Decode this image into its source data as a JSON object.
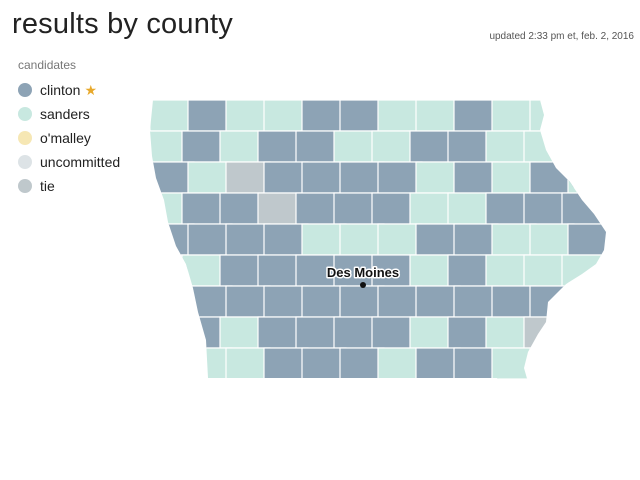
{
  "title": "results by county",
  "updated": "updated 2:33 pm et, feb. 2, 2016",
  "legend": {
    "heading": "candidates",
    "items": [
      {
        "key": "clinton",
        "label": "clinton",
        "color": "#8da3b5",
        "winner": true
      },
      {
        "key": "sanders",
        "label": "sanders",
        "color": "#c8e8e0",
        "winner": false
      },
      {
        "key": "omalley",
        "label": "o'malley",
        "color": "#f6e7b4",
        "winner": false
      },
      {
        "key": "uncommitted",
        "label": "uncommitted",
        "color": "#dde3e6",
        "winner": false
      },
      {
        "key": "tie",
        "label": "tie",
        "color": "#bfc8cc",
        "winner": false
      }
    ]
  },
  "city": {
    "name": "Des Moines"
  },
  "counties": {
    "rows": [
      "SCSSCCSSCSSC",
      "SCSCCSSCCSSC",
      "CSTCCCCSCSCS",
      "SCCTCCCSSCCC",
      "CCCCSSSCCSSC",
      "SSCCCCCSCSSS",
      "SCCCCCCCCCCS",
      "SCSCCCCSCSTS",
      "SSSCCCSCCSSC"
    ]
  }
}
